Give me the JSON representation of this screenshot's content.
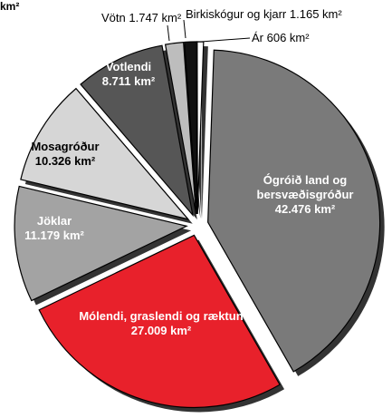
{
  "chart_data": {
    "type": "pie",
    "title": "km²",
    "categories": [
      "Ógróið land og bersvæðisgróður",
      "Mólendi, graslendi og ræktun",
      "Jöklar",
      "Mosagróður",
      "Votlendi",
      "Vötn",
      "Birkiskógur og kjarr",
      "Ár"
    ],
    "values": [
      42476,
      27009,
      11179,
      10326,
      8711,
      1747,
      1165,
      606
    ],
    "value_labels": [
      "42.476 km²",
      "27.009 km²",
      "11.179 km²",
      "10.326 km²",
      "8.711 km²",
      "1.747 km²",
      "1.165 km²",
      "606 km²"
    ],
    "colors": [
      "#7a7a7a",
      "#e8212b",
      "#a3a3a3",
      "#d6d6d6",
      "#565656",
      "#bdbdbd",
      "#111111",
      "#ffffff"
    ]
  }
}
